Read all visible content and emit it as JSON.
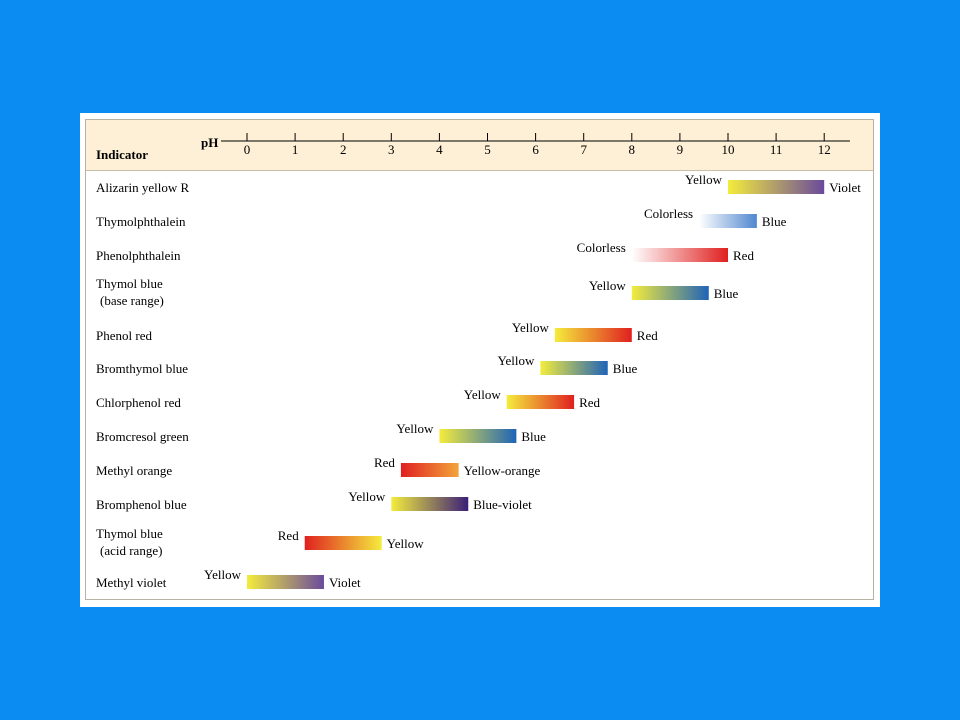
{
  "chart_data": {
    "type": "bar",
    "header_label": "Indicator",
    "axis_label": "pH",
    "ph_ticks": [
      "0",
      "1",
      "2",
      "3",
      "4",
      "5",
      "6",
      "7",
      "8",
      "9",
      "10",
      "11",
      "12"
    ],
    "xlim": [
      0,
      12
    ],
    "indicators": [
      {
        "name": [
          "Alizarin yellow R"
        ],
        "low_color": "Yellow",
        "high_color": "Violet",
        "range": [
          10.0,
          12.0
        ],
        "gradient": [
          "#f4ec3c",
          "#6a4a9c"
        ]
      },
      {
        "name": [
          "Thymolphthalein"
        ],
        "low_color": "Colorless",
        "high_color": "Blue",
        "range": [
          9.4,
          10.6
        ],
        "gradient": [
          "#ffffff",
          "#4f87cf"
        ]
      },
      {
        "name": [
          "Phenolphthalein"
        ],
        "low_color": "Colorless",
        "high_color": "Red",
        "range": [
          8.0,
          10.0
        ],
        "gradient": [
          "#ffffff",
          "#e02020"
        ]
      },
      {
        "name": [
          "Thymol blue",
          "(base range)"
        ],
        "low_color": "Yellow",
        "high_color": "Blue",
        "range": [
          8.0,
          9.6
        ],
        "gradient": [
          "#f4ec3c",
          "#1f63b8"
        ]
      },
      {
        "name": [
          "Phenol red"
        ],
        "low_color": "Yellow",
        "high_color": "Red",
        "range": [
          6.4,
          8.0
        ],
        "gradient": [
          "#f4ec3c",
          "#e02020"
        ]
      },
      {
        "name": [
          "Bromthymol blue"
        ],
        "low_color": "Yellow",
        "high_color": "Blue",
        "range": [
          6.1,
          7.5
        ],
        "gradient": [
          "#f4ec3c",
          "#1f63b8"
        ]
      },
      {
        "name": [
          "Chlorphenol red"
        ],
        "low_color": "Yellow",
        "high_color": "Red",
        "range": [
          5.4,
          6.8
        ],
        "gradient": [
          "#f4ec3c",
          "#e02020"
        ]
      },
      {
        "name": [
          "Bromcresol green"
        ],
        "low_color": "Yellow",
        "high_color": "Blue",
        "range": [
          4.0,
          5.6
        ],
        "gradient": [
          "#f4ec3c",
          "#1f63b8"
        ]
      },
      {
        "name": [
          "Methyl orange"
        ],
        "low_color": "Red",
        "high_color": "Yellow-orange",
        "range": [
          3.2,
          4.4
        ],
        "gradient": [
          "#e02020",
          "#f2a53a"
        ]
      },
      {
        "name": [
          "Bromphenol blue"
        ],
        "low_color": "Yellow",
        "high_color": "Blue-violet",
        "range": [
          3.0,
          4.6
        ],
        "gradient": [
          "#f4ec3c",
          "#3a1f78"
        ]
      },
      {
        "name": [
          "Thymol blue",
          "(acid range)"
        ],
        "low_color": "Red",
        "high_color": "Yellow",
        "range": [
          1.2,
          2.8
        ],
        "gradient": [
          "#e02020",
          "#f4ec3c"
        ]
      },
      {
        "name": [
          "Methyl violet"
        ],
        "low_color": "Yellow",
        "high_color": "Violet",
        "range": [
          0.0,
          1.6
        ],
        "gradient": [
          "#f4ec3c",
          "#6a4a9c"
        ]
      }
    ]
  }
}
